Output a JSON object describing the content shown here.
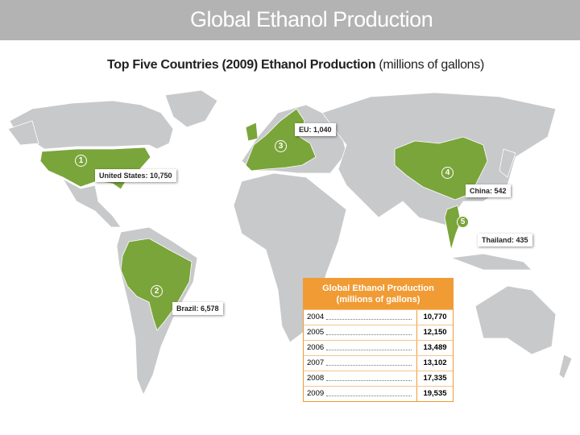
{
  "header": {
    "title": "Global Ethanol Production"
  },
  "subtitle": {
    "main": "Top Five Countries (2009) Ethanol Production",
    "unit": "(millions of gallons)"
  },
  "callouts": [
    {
      "rank": 1,
      "label": "United States: 10,750"
    },
    {
      "rank": 2,
      "label": "Brazil: 6,578"
    },
    {
      "rank": 3,
      "label": "EU: 1,040"
    },
    {
      "rank": 4,
      "label": "China: 542"
    },
    {
      "rank": 5,
      "label": "Thailand: 435"
    }
  ],
  "table": {
    "title": "Global Ethanol Production (millions of gallons)",
    "rows": [
      [
        "2004",
        "10,770"
      ],
      [
        "2005",
        "12,150"
      ],
      [
        "2006",
        "13,489"
      ],
      [
        "2007",
        "13,102"
      ],
      [
        "2008",
        "17,335"
      ],
      [
        "2009",
        "19,535"
      ]
    ]
  }
}
